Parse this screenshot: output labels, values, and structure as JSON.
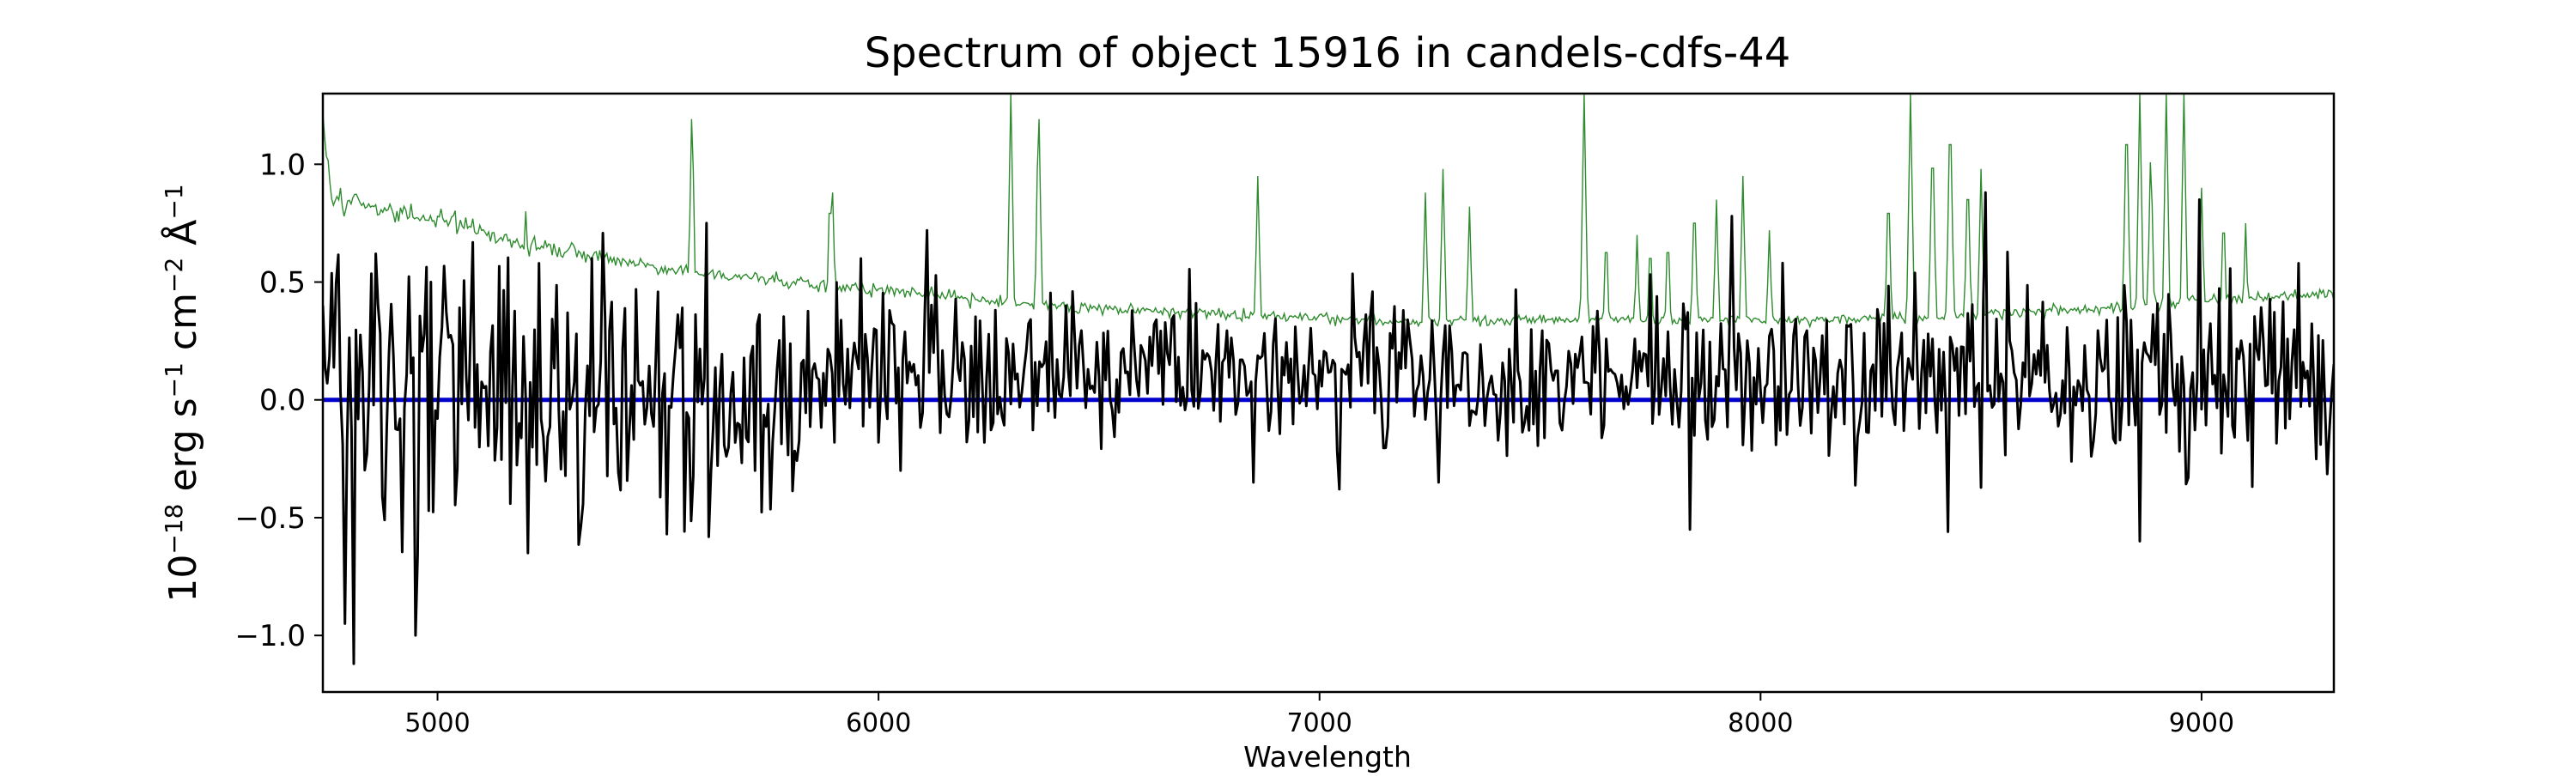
{
  "chart_data": {
    "type": "line",
    "title": "Spectrum of object 15916 in candels-cdfs-44",
    "xlabel": "Wavelength",
    "ylabel_base": "10",
    "ylabel_exp": "−18",
    "ylabel_mid": " erg s",
    "ylabel_exp2": "−1",
    "ylabel_mid2": " cm",
    "ylabel_exp3": "−2",
    "ylabel_mid3": " Å",
    "ylabel_exp4": "−1",
    "xlim": [
      4740,
      9300
    ],
    "ylim": [
      -1.24,
      1.3
    ],
    "x_ticks": [
      5000,
      6000,
      7000,
      8000,
      9000
    ],
    "x_tick_labels": [
      "5000",
      "6000",
      "7000",
      "8000",
      "9000"
    ],
    "y_ticks": [
      1.0,
      0.5,
      0.0,
      -0.5,
      -1.0
    ],
    "y_tick_labels": [
      "1.0",
      "0.5",
      "0.0",
      "−0.5",
      "−1.0"
    ],
    "grid": false,
    "series": [
      {
        "role": "model",
        "color": "#0000cc",
        "x": [
          4740,
          9300
        ],
        "values": [
          0.0,
          0.0
        ]
      },
      {
        "role": "error",
        "color": "#2e8b2e",
        "continuum": {
          "x": [
            4740,
            4760,
            4800,
            5000,
            5200,
            5500,
            5800,
            6100,
            6400,
            6700,
            7000,
            7200,
            7500,
            7800,
            8100,
            8400,
            8700,
            9000,
            9300
          ],
          "values": [
            1.2,
            0.86,
            0.84,
            0.77,
            0.66,
            0.56,
            0.5,
            0.45,
            0.4,
            0.37,
            0.35,
            0.33,
            0.34,
            0.34,
            0.34,
            0.35,
            0.38,
            0.42,
            0.45
          ]
        },
        "spikes": {
          "x": [
            5200,
            5577,
            5890,
            5896,
            6300,
            6363,
            6860,
            7240,
            7280,
            7340,
            7600,
            7650,
            7720,
            7750,
            7790,
            7850,
            7900,
            7960,
            8020,
            8290,
            8340,
            8390,
            8430,
            8470,
            8500,
            8830,
            8860,
            8885,
            8920,
            8960,
            9000,
            9050,
            9100
          ],
          "values": [
            0.8,
            1.3,
            0.95,
            0.88,
            1.3,
            1.3,
            0.95,
            0.88,
            0.98,
            0.82,
            1.3,
            0.75,
            0.7,
            0.72,
            0.75,
            0.9,
            0.85,
            0.95,
            0.72,
            0.95,
            1.3,
            1.18,
            1.3,
            1.02,
            0.98,
            1.3,
            1.3,
            1.1,
            1.3,
            1.3,
            0.9,
            0.85,
            0.75
          ]
        }
      },
      {
        "role": "flux",
        "color": "#000000",
        "noise_seed": 15916,
        "anchors": {
          "x": [
            4790,
            4812,
            4860,
            4952,
            4985,
            5205,
            5230,
            5520,
            5610,
            5960,
            6110,
            6440,
            7190,
            7270,
            7840,
            7935,
            8425,
            8510,
            8860,
            8995,
            9220
          ],
          "values": [
            -0.95,
            -1.12,
            0.62,
            -1.0,
            0.5,
            -0.65,
            0.58,
            -0.57,
            0.75,
            0.6,
            0.72,
            0.46,
            0.38,
            -0.35,
            -0.55,
            0.78,
            -0.56,
            0.88,
            -0.6,
            0.85,
            0.58
          ]
        },
        "envelope": {
          "x": [
            4740,
            5000,
            5500,
            6000,
            6500,
            7000,
            7500,
            8000,
            8500,
            9000,
            9300
          ],
          "sigma": [
            0.34,
            0.32,
            0.24,
            0.18,
            0.15,
            0.14,
            0.16,
            0.17,
            0.2,
            0.22,
            0.23
          ],
          "mean": [
            0.0,
            0.0,
            0.02,
            0.08,
            0.13,
            0.1,
            0.08,
            0.1,
            0.12,
            0.1,
            0.1
          ]
        }
      }
    ]
  }
}
